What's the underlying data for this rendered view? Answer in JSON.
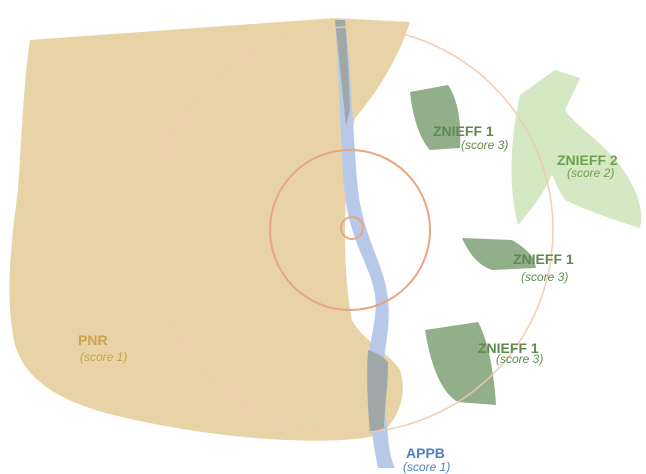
{
  "zones": {
    "pnr": {
      "name": "PNR",
      "score": "(score 1)",
      "color": "#C9A24B"
    },
    "appb": {
      "name": "APPB",
      "score": "(score 1)",
      "color": "#4F81BD"
    },
    "znieff1_a": {
      "name": "ZNIEFF 1",
      "score": "(score 3)",
      "color": "#5E8A4E"
    },
    "znieff1_b": {
      "name": "ZNIEFF 1",
      "score": "(score 3)",
      "color": "#5E8A4E"
    },
    "znieff1_c": {
      "name": "ZNIEFF 1",
      "score": "(score 3)",
      "color": "#5E8A4E"
    },
    "znieff2": {
      "name": "ZNIEFF 2",
      "score": "(score 2)",
      "color": "#6FA050"
    }
  },
  "colors": {
    "pnr_fill": "#E8D3A6",
    "river_fill": "#B7C8E8",
    "river_overlap": "#9FA8A6",
    "znieff1_fill": "#92AE8A",
    "znieff2_fill": "#D3E8C3",
    "buffer_ring": "#E7A77E"
  }
}
